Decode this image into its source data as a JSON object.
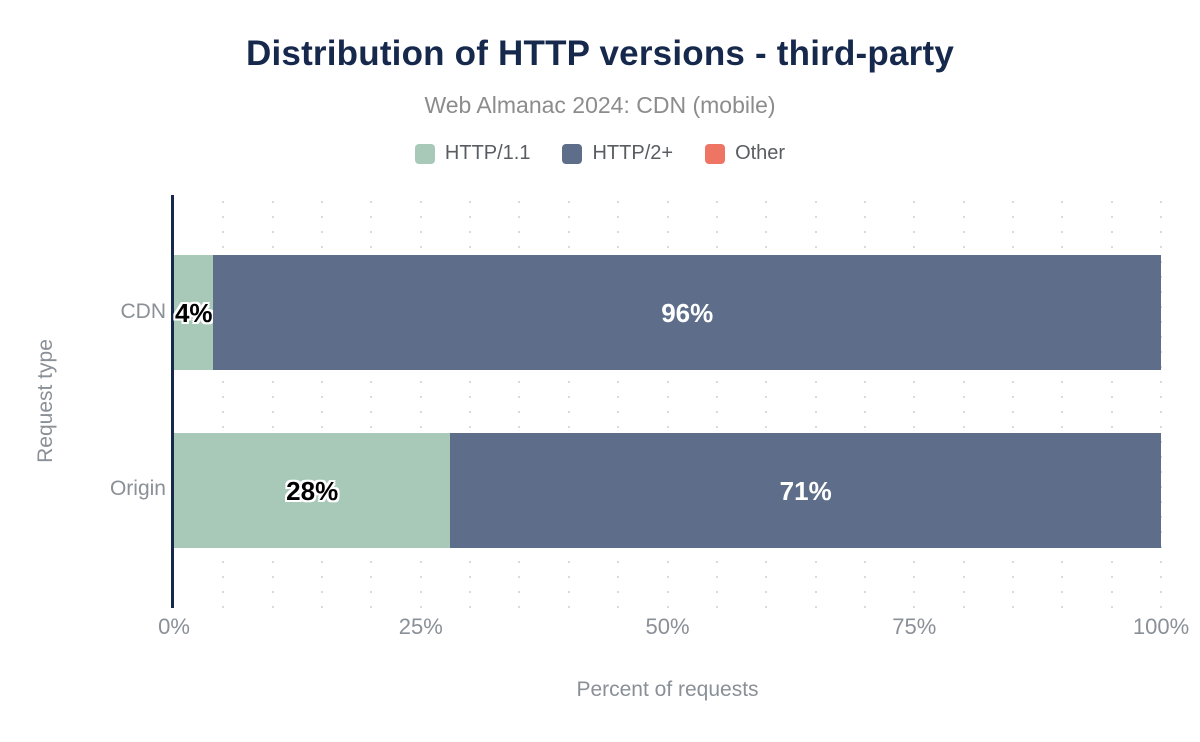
{
  "chart_data": {
    "type": "bar",
    "orientation": "horizontal",
    "stacked": true,
    "title": "Distribution of HTTP versions - third-party",
    "subtitle": "Web Almanac 2024: CDN (mobile)",
    "categories": [
      "CDN",
      "Origin"
    ],
    "series": [
      {
        "name": "HTTP/1.1",
        "color": "#a8c9b7",
        "label_style": "dark",
        "values": [
          4,
          28
        ],
        "labels": [
          "4%",
          "28%"
        ]
      },
      {
        "name": "HTTP/2+",
        "color": "#5e6e8a",
        "label_style": "light",
        "values": [
          96,
          71
        ],
        "labels": [
          "96%",
          "71%"
        ]
      },
      {
        "name": "Other",
        "color": "#ee7464",
        "label_style": "light",
        "values": [
          0,
          0
        ],
        "labels": [
          "",
          ""
        ]
      }
    ],
    "xlabel": "Percent of requests",
    "ylabel": "Request type",
    "x_ticks": [
      "0%",
      "25%",
      "50%",
      "75%",
      "100%"
    ],
    "xlim": [
      0,
      100
    ],
    "grid": "dotted vertical lines every 5%",
    "legend_position": "top"
  },
  "legend": [
    {
      "label": "HTTP/1.1",
      "color": "#a8c9b7"
    },
    {
      "label": "HTTP/2+",
      "color": "#5e6e8a"
    },
    {
      "label": "Other",
      "color": "#ee7464"
    }
  ],
  "colors": {
    "title_navy": "#16294c",
    "axis_line": "#16294c",
    "subtitle_gray": "#8c8c8c",
    "axis_text_gray": "#8a9097",
    "legend_text_gray": "#595d61",
    "gridline_gray": "#d8dbde",
    "background": "#ffffff"
  }
}
